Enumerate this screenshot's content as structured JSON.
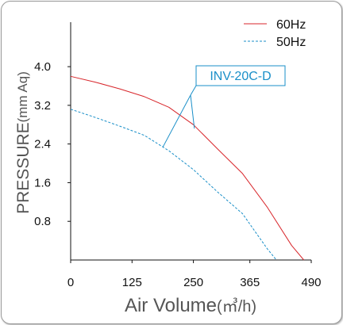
{
  "chart_data": {
    "type": "line",
    "xlabel": "Air Volume",
    "xlabel_unit": "(㎥/h)",
    "ylabel": "PRESSURE",
    "ylabel_unit": "(mm Aq)",
    "x_ticks": [
      "0",
      "125",
      "250",
      "365",
      "490"
    ],
    "x_tick_values": [
      0,
      125,
      250,
      365,
      490
    ],
    "y_ticks": [
      "0.8",
      "1.6",
      "2.4",
      "3.2",
      "4.0"
    ],
    "y_tick_values": [
      0.8,
      1.6,
      2.4,
      3.2,
      4.0
    ],
    "xlim": [
      0,
      490
    ],
    "ylim": [
      0,
      4.92
    ],
    "legend_position": "top-right",
    "series": [
      {
        "name": "60Hz",
        "color": "#d8262b",
        "style": "solid",
        "x": [
          0,
          50,
          100,
          150,
          200,
          250,
          300,
          350,
          400,
          450,
          475
        ],
        "y": [
          3.8,
          3.68,
          3.54,
          3.38,
          3.16,
          2.8,
          2.29,
          1.79,
          1.1,
          0.3,
          0.0
        ]
      },
      {
        "name": "50Hz",
        "color": "#1a8fc8",
        "style": "dashed",
        "x": [
          0,
          50,
          100,
          150,
          200,
          250,
          300,
          350,
          400,
          419
        ],
        "y": [
          3.12,
          2.95,
          2.77,
          2.58,
          2.26,
          1.87,
          1.4,
          0.96,
          0.24,
          0.0
        ]
      }
    ],
    "annotation": {
      "text": "INV-20C-D",
      "border_color": "#1a8fc8",
      "points_to": [
        {
          "x": 188,
          "y": 2.34
        },
        {
          "x": 252,
          "y": 2.72
        }
      ]
    }
  }
}
